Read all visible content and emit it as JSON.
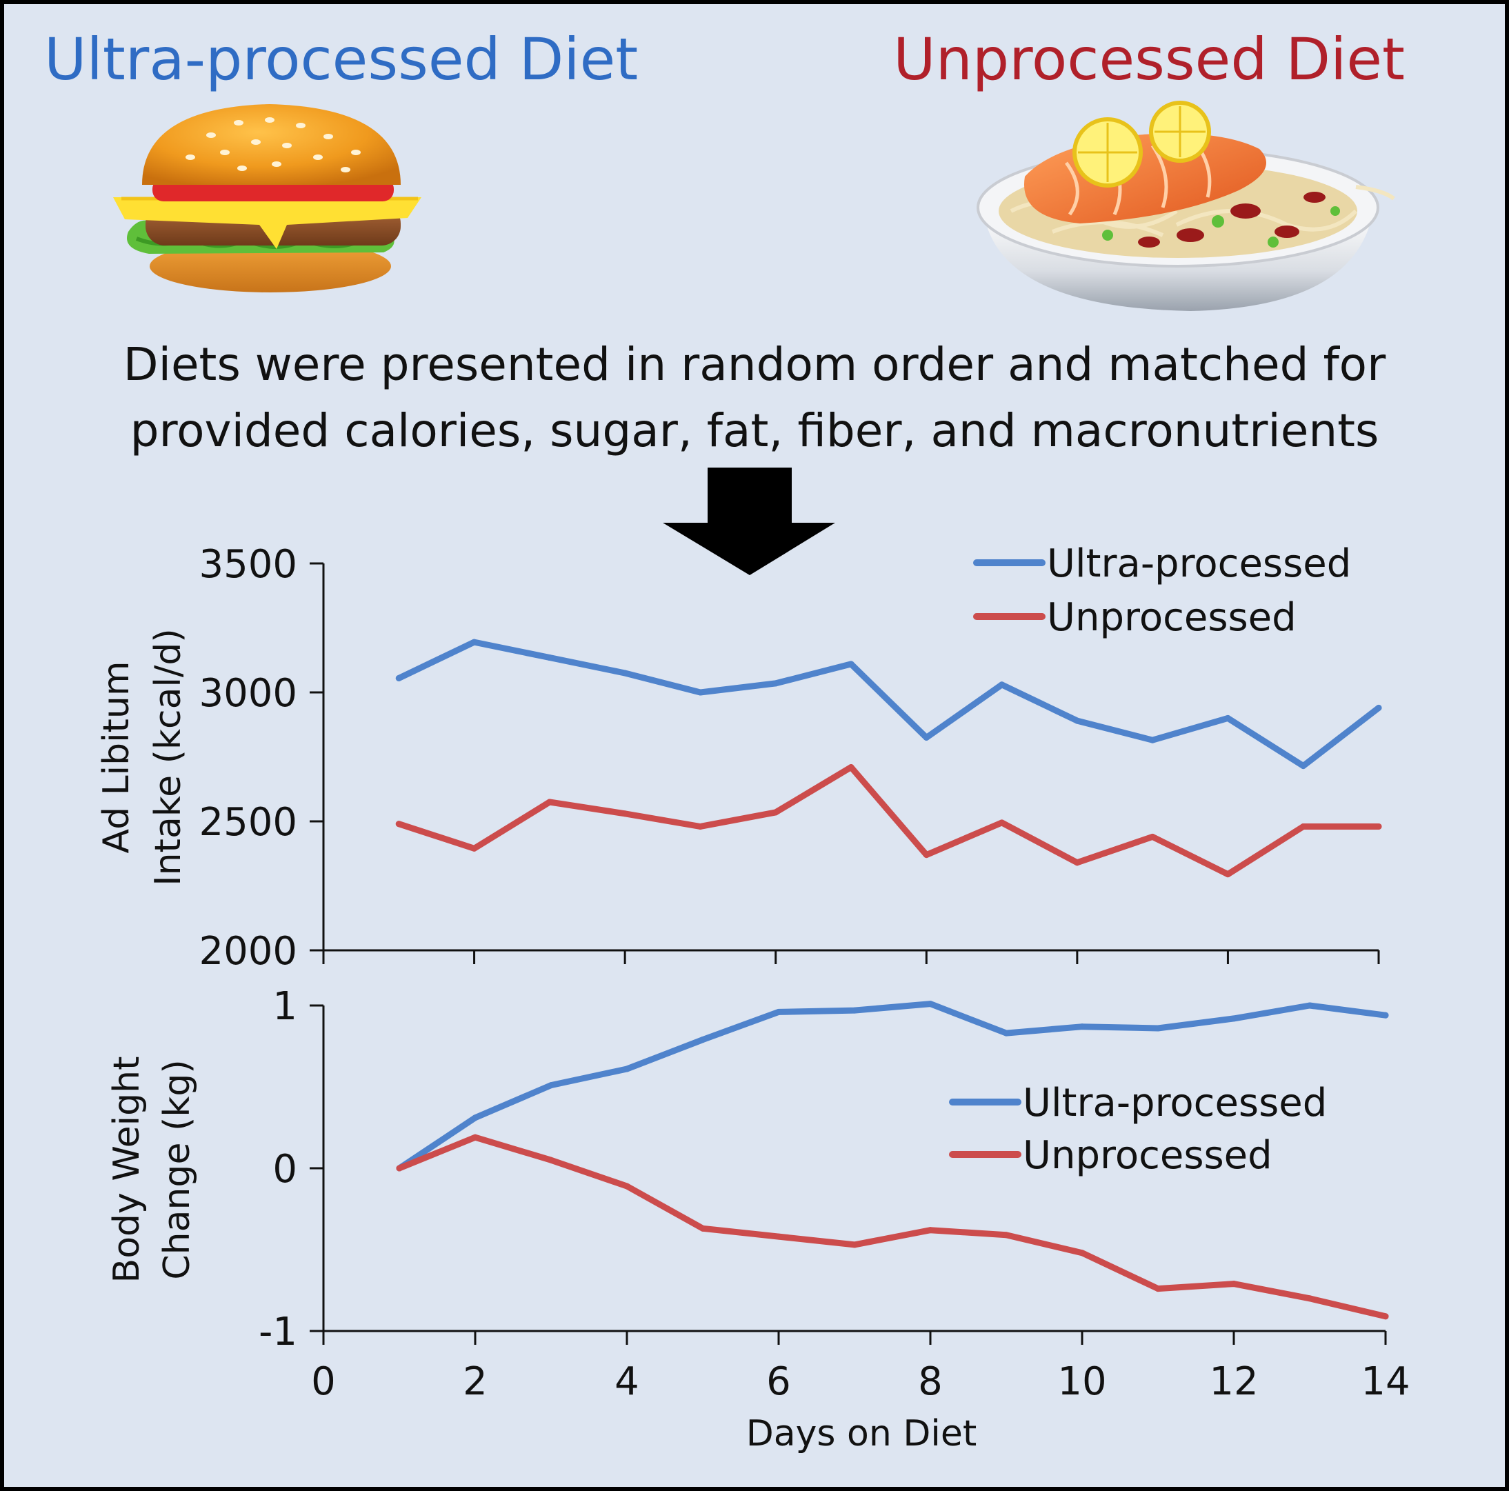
{
  "header": {
    "left_title": "Ultra-processed Diet",
    "right_title": "Unprocessed Diet",
    "left_color": "#2f6cc4",
    "right_color": "#b0202a"
  },
  "icons": {
    "left_food": "hamburger-icon",
    "right_food": "salmon-noodle-bowl-icon",
    "arrow": "down-arrow-icon"
  },
  "caption": {
    "line1": "Diets were presented in random order and matched for",
    "line2": "provided calories, sugar, fat, fiber, and macronutrients"
  },
  "chart_data": [
    {
      "type": "line",
      "x": [
        1,
        2,
        3,
        4,
        5,
        6,
        7,
        8,
        9,
        10,
        11,
        12,
        13,
        14
      ],
      "series": [
        {
          "name": "Ultra-processed",
          "color": "#4f83cc",
          "values": [
            3055,
            3195,
            3135,
            3075,
            3000,
            3035,
            3110,
            2825,
            3030,
            2890,
            2815,
            2900,
            2715,
            2940
          ]
        },
        {
          "name": "Unprocessed",
          "color": "#cc4c4c",
          "values": [
            2490,
            2395,
            2575,
            2530,
            2480,
            2535,
            2710,
            2370,
            2495,
            2340,
            2440,
            2295,
            2480,
            2480
          ]
        }
      ],
      "ylabel": [
        "Ad Libitum",
        "Intake (kcal/d)"
      ],
      "ylim": [
        2000,
        3500
      ],
      "yticks": [
        2000,
        2500,
        3000,
        3500
      ],
      "xlim": [
        0,
        14
      ],
      "xticks": [
        0,
        2,
        4,
        6,
        8,
        10,
        12,
        14
      ],
      "grid": false,
      "legend": "top-right"
    },
    {
      "type": "line",
      "x": [
        1,
        2,
        3,
        4,
        5,
        6,
        7,
        8,
        9,
        10,
        11,
        12,
        13,
        14
      ],
      "series": [
        {
          "name": "Ultra-processed",
          "color": "#4f83cc",
          "values": [
            0,
            0.31,
            0.51,
            0.61,
            0.79,
            0.96,
            0.97,
            1.01,
            0.83,
            0.87,
            0.86,
            0.92,
            1.0,
            0.94
          ]
        },
        {
          "name": "Unprocessed",
          "color": "#cc4c4c",
          "values": [
            0,
            0.19,
            0.05,
            -0.11,
            -0.37,
            -0.42,
            -0.47,
            -0.38,
            -0.41,
            -0.52,
            -0.74,
            -0.71,
            -0.8,
            -0.91
          ]
        }
      ],
      "ylabel": [
        "Body Weight",
        "Change (kg)"
      ],
      "ylim": [
        -1,
        1
      ],
      "yticks": [
        -1,
        0,
        1
      ],
      "xlim": [
        0,
        14
      ],
      "xticks": [
        0,
        2,
        4,
        6,
        8,
        10,
        12,
        14
      ],
      "xticklabels": [
        "0",
        "2",
        "4",
        "6",
        "8",
        "10",
        "12",
        "14"
      ],
      "xlabel": "Days on Diet",
      "grid": false,
      "legend": "center-right"
    }
  ]
}
